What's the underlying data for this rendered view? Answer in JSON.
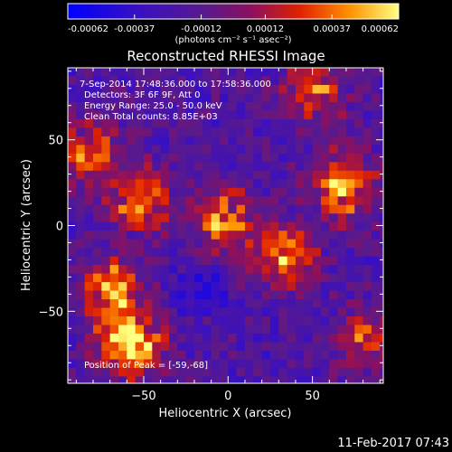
{
  "chart_data": {
    "type": "heatmap",
    "title": "Reconstructed RHESSI Image",
    "xlabel": "Heliocentric X (arcsec)",
    "ylabel": "Heliocentric Y (arcsec)",
    "xlim": [
      -95,
      92
    ],
    "ylim": [
      -92,
      92
    ],
    "x_ticks": [
      -50,
      0,
      50
    ],
    "y_ticks": [
      50,
      0,
      -50
    ],
    "colorbar": {
      "units": "(photons cm⁻² s⁻¹ asec⁻²)",
      "range": [
        -0.00062,
        0.00062
      ],
      "tick_labels": [
        "-0.00062",
        "-0.00037",
        "-0.00012",
        "0.00012",
        "0.00037",
        "0.00062"
      ]
    },
    "annotations": [
      " 7-Sep-2014 17:48:36.000 to 17:58:36.000",
      "Detectors: 3F 6F 9F, Att 0",
      "Energy Range: 25.0 - 50.0 keV",
      "Clean     Total counts: 8.85E+03"
    ],
    "peak_label": "Position of Peak = [-59,-68]",
    "peak_position": [
      -59,
      -68
    ],
    "grid": false,
    "emission_regions": [
      {
        "x": -60,
        "y": -68,
        "strength": 1.0
      },
      {
        "x": -72,
        "y": -35,
        "strength": 0.8
      },
      {
        "x": 65,
        "y": 25,
        "strength": 0.85
      },
      {
        "x": 30,
        "y": -15,
        "strength": 0.75
      },
      {
        "x": -5,
        "y": 5,
        "strength": 0.7
      },
      {
        "x": -55,
        "y": 18,
        "strength": 0.65
      },
      {
        "x": 48,
        "y": 80,
        "strength": 0.6
      },
      {
        "x": -85,
        "y": 45,
        "strength": 0.55
      },
      {
        "x": 80,
        "y": -65,
        "strength": 0.55
      }
    ]
  },
  "footer": {
    "timestamp": "11-Feb-2017 07:43"
  }
}
